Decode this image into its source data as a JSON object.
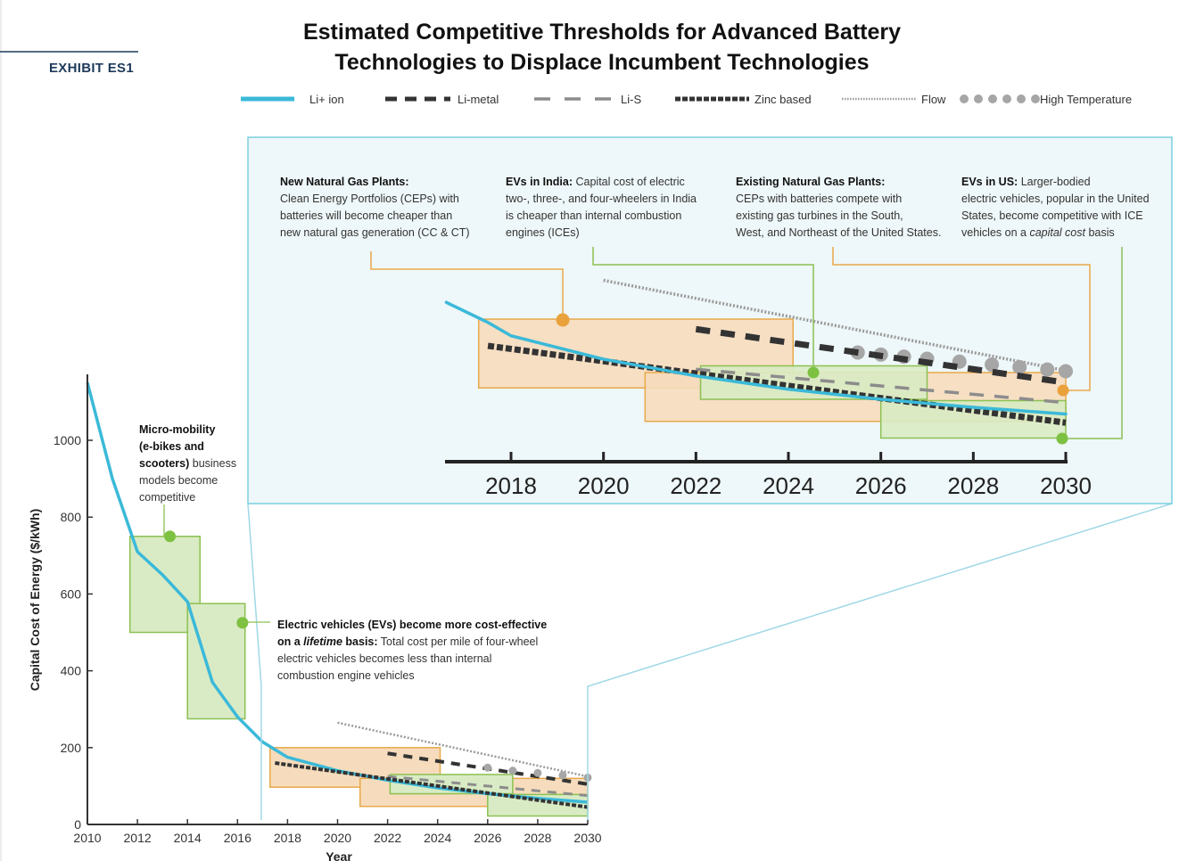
{
  "header": {
    "exhibit": "EXHIBIT ES1",
    "title_line1": "Estimated Competitive Thresholds for Advanced Battery",
    "title_line2": "Technologies to Displace Incumbent Technologies"
  },
  "colors": {
    "li_ion": "#3bb9d9",
    "dark": "#333333",
    "gray": "#8c8c8c",
    "green_fill": "#d9ebc4",
    "green_stroke": "#8cc052",
    "green_dot": "#7dc142",
    "orange_fill": "#f6dcbc",
    "orange_stroke": "#e8a94b",
    "orange_dot": "#e9a23b",
    "inset_bg": "#eef7f9",
    "inset_border": "#7ccfdf"
  },
  "annotations": {
    "micro": {
      "b1": "Micro-mobility",
      "b2": "(e-bikes and",
      "b3": "scooters)",
      "t3": " business",
      "t4": "models become",
      "t5": "competitive"
    },
    "ev_life": {
      "b1": "Electric vehicles (EVs) become more cost-effective",
      "b2a": "on a ",
      "b2i": "lifetime",
      "b2b": " basis:",
      "t2": " Total cost per mile of four-wheel",
      "t3": "electric vehicles becomes less than internal",
      "t4": "combustion engine vehicles"
    },
    "ngp_new": {
      "b1": "New Natural Gas Plants:",
      "t2": "Clean Energy Portfolios (CEPs) with",
      "t3": "batteries will become cheaper than",
      "t4": "new natural gas generation (CC & CT)"
    },
    "ev_india": {
      "b1": "EVs in India:",
      "t1": " Capital cost of electric",
      "t2": "two-, three-, and four-wheelers in India",
      "t3": "is cheaper than internal combustion",
      "t4": "engines (ICEs)"
    },
    "ngp_exist": {
      "b1": "Existing Natural Gas Plants:",
      "t2": "CEPs with batteries compete with",
      "t3": "existing gas turbines in the South,",
      "t4": "West, and Northeast of the United States."
    },
    "ev_us": {
      "b1": "EVs in US:",
      "t1": " Larger-bodied",
      "t2": "electric vehicles, popular in the United",
      "t3": "States, become competitive with ICE",
      "t4a": "vehicles on a ",
      "t4i": "capital cost",
      "t4b": " basis"
    }
  },
  "chart_data": {
    "type": "line",
    "xlabel": "Year",
    "ylabel": "Capital Cost of Energy ($/kWh)",
    "xlim": [
      2010,
      2030
    ],
    "ylim": [
      0,
      1150
    ],
    "x_ticks": [
      2010,
      2012,
      2014,
      2016,
      2018,
      2020,
      2022,
      2024,
      2026,
      2028,
      2030
    ],
    "y_ticks": [
      0,
      200,
      400,
      600,
      800,
      1000
    ],
    "inset_x_ticks": [
      2018,
      2020,
      2022,
      2024,
      2026,
      2028,
      2030
    ],
    "inset_xlim": [
      2016.6,
      2030
    ],
    "inset_ylim": [
      20,
      220
    ],
    "legend": [
      {
        "name": "Li+ ion",
        "style": "li_ion"
      },
      {
        "name": "Li-metal",
        "style": "li_metal"
      },
      {
        "name": "Li-S",
        "style": "li_s"
      },
      {
        "name": "Zinc based",
        "style": "zinc"
      },
      {
        "name": "Flow",
        "style": "flow"
      },
      {
        "name": "High Temperature",
        "style": "hightemp"
      }
    ],
    "series": [
      {
        "name": "Li+ ion",
        "style": "li_ion",
        "x": [
          2010,
          2011,
          2012,
          2013,
          2014,
          2015,
          2016,
          2017,
          2018,
          2020,
          2022,
          2024,
          2026,
          2028,
          2030
        ],
        "y": [
          1150,
          900,
          710,
          650,
          580,
          370,
          280,
          215,
          175,
          140,
          115,
          95,
          80,
          68,
          58
        ]
      },
      {
        "name": "Li-metal",
        "style": "li_metal",
        "x": [
          2022,
          2030
        ],
        "y": [
          185,
          105
        ]
      },
      {
        "name": "Li-S",
        "style": "li_s",
        "x": [
          2022,
          2030
        ],
        "y": [
          125,
          75
        ]
      },
      {
        "name": "Zinc based",
        "style": "zinc",
        "x": [
          2017.5,
          2030
        ],
        "y": [
          160,
          45
        ]
      },
      {
        "name": "Flow",
        "style": "flow",
        "x": [
          2020,
          2030
        ],
        "y": [
          265,
          125
        ]
      },
      {
        "name": "High Temperature",
        "style": "hightemp",
        "x": [
          2026,
          2027,
          2028,
          2029,
          2030
        ],
        "y": [
          148,
          140,
          134,
          128,
          122
        ]
      }
    ],
    "boxes": [
      {
        "id": "micro-mobility",
        "kind": "green",
        "x": [
          2011.7,
          2014.5
        ],
        "y": [
          500,
          750
        ],
        "dot": [
          2013.3,
          750
        ]
      },
      {
        "id": "ev-lifetime",
        "kind": "green",
        "x": [
          2014,
          2016.3
        ],
        "y": [
          275,
          575
        ],
        "dot": [
          2016.2,
          525
        ]
      },
      {
        "id": "new-ngp",
        "kind": "orange",
        "x": [
          2017.3,
          2024.1
        ],
        "y": [
          97,
          200
        ],
        "dot": [
          2019.1,
          167
        ]
      },
      {
        "id": "existing-ngp",
        "kind": "orange",
        "x": [
          2020.9,
          2030
        ],
        "y": [
          47,
          120
        ],
        "dot": [
          2030,
          110
        ]
      },
      {
        "id": "ev-india",
        "kind": "green",
        "x": [
          2022.1,
          2027
        ],
        "y": [
          80,
          130
        ],
        "dot": [
          2024.6,
          138
        ]
      },
      {
        "id": "ev-us",
        "kind": "green",
        "x": [
          2026,
          2030
        ],
        "y": [
          22,
          78
        ],
        "dot": [
          2030,
          56
        ]
      }
    ]
  }
}
